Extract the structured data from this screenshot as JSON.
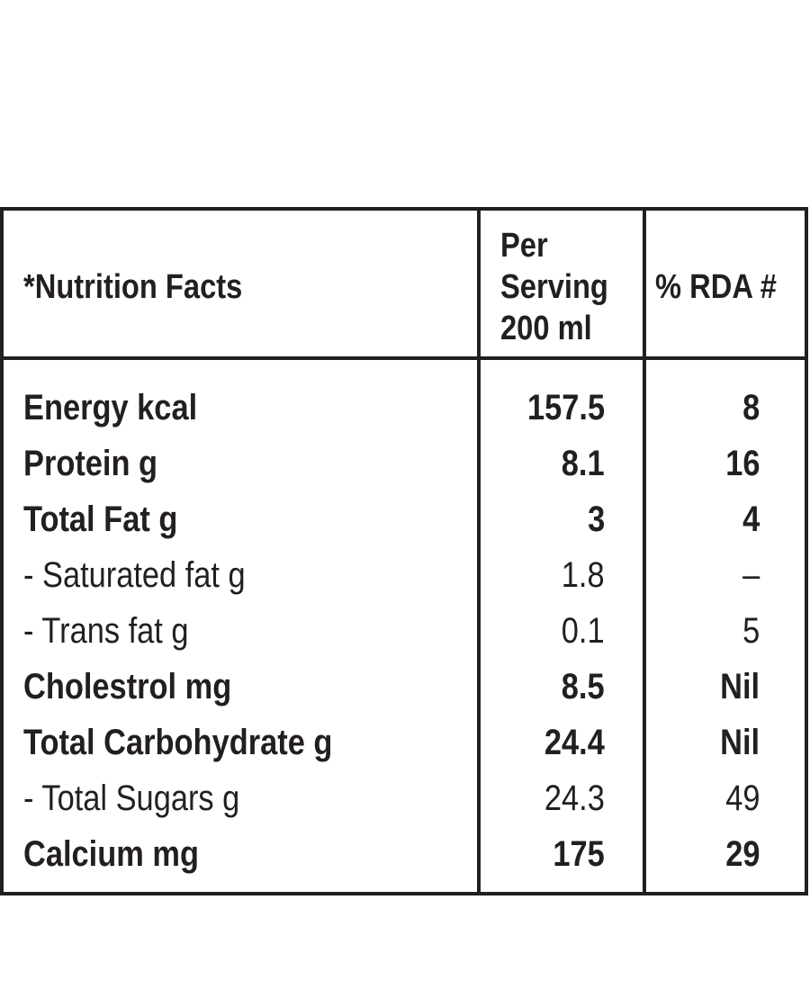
{
  "table": {
    "header": {
      "title": "*Nutrition Facts",
      "serving_lines": [
        "Per",
        "Serving",
        "200 ml"
      ],
      "rda": "% RDA #"
    },
    "rows": [
      {
        "label": "Energy kcal",
        "per_serving": "157.5",
        "rda": "8",
        "bold": true
      },
      {
        "label": "Protein g",
        "per_serving": "8.1",
        "rda": "16",
        "bold": true
      },
      {
        "label": "Total Fat g",
        "per_serving": "3",
        "rda": "4",
        "bold": true
      },
      {
        "label": "- Saturated fat g",
        "per_serving": "1.8",
        "rda": "–",
        "bold": false
      },
      {
        "label": "- Trans fat g",
        "per_serving": "0.1",
        "rda": "5",
        "bold": false
      },
      {
        "label": "Cholestrol mg",
        "per_serving": "8.5",
        "rda": "Nil",
        "bold": true
      },
      {
        "label": "Total Carbohydrate g",
        "per_serving": "24.4",
        "rda": "Nil",
        "bold": true
      },
      {
        "label": "- Total Sugars g",
        "per_serving": "24.3",
        "rda": "49",
        "bold": false
      },
      {
        "label": "Calcium mg",
        "per_serving": "175",
        "rda": "29",
        "bold": true
      }
    ]
  }
}
